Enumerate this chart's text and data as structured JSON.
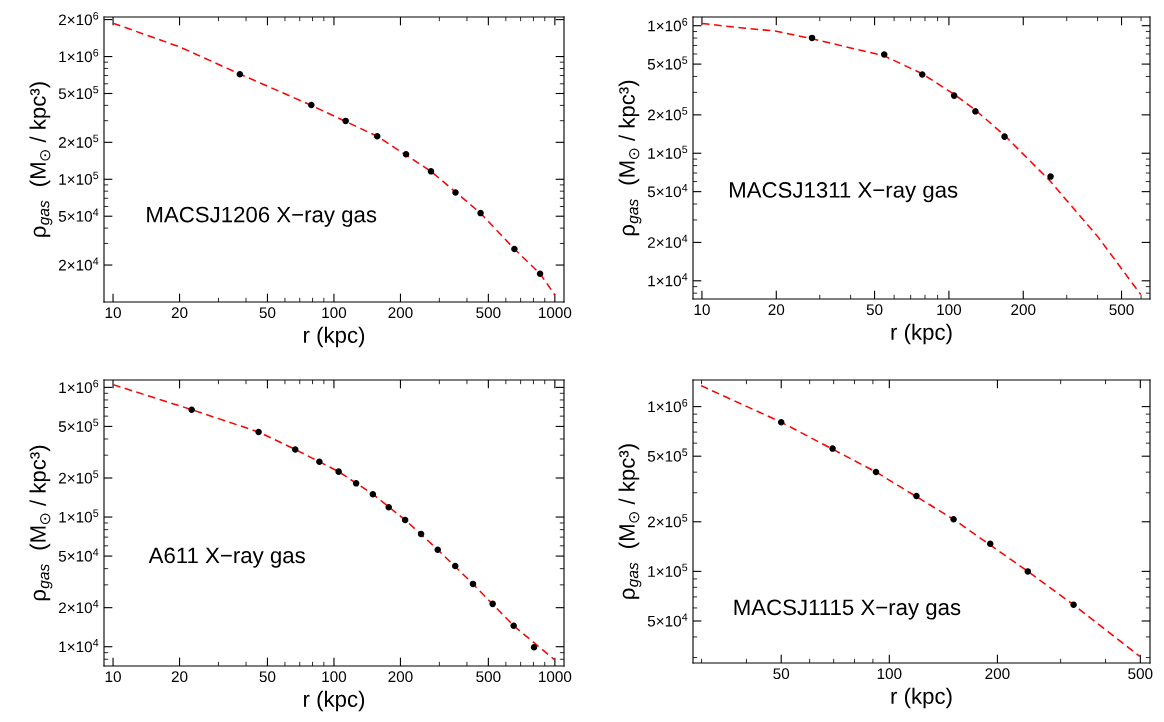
{
  "chart_data": [
    {
      "type": "scatter",
      "xlabel": "r (kpc)",
      "ylabel": "ρ$_{gas}$  (M$_{⊙}$ / kpc³)",
      "log": "xy",
      "annotations": [
        "MACSJ1206 X−ray gas"
      ],
      "xlim": [
        9.1,
        1100
      ],
      "xticks": [
        10,
        20,
        50,
        100,
        200,
        500,
        1000
      ],
      "ylim": [
        10000,
        2100000
      ],
      "yticks": [
        {
          "value": 20000,
          "label": "2×10$^{4}$"
        },
        {
          "value": 50000,
          "label": "5×10$^{4}$"
        },
        {
          "value": 100000,
          "label": "1×10$^{5}$"
        },
        {
          "value": 200000,
          "label": "2×10$^{5}$"
        },
        {
          "value": 500000,
          "label": "5×10$^{5}$"
        },
        {
          "value": 1000000,
          "label": "1×10$^{6}$"
        },
        {
          "value": 2000000,
          "label": "2×10$^{6}$"
        }
      ],
      "series": [
        {
          "type": "line",
          "color": "#ff0000",
          "line_style": "dashed",
          "marker": "none",
          "x": [
            10,
            20,
            37.5,
            79,
            157,
            275,
            461,
            656,
            857,
            1000
          ],
          "values": [
            1870000,
            1200000,
            720000,
            400000,
            224000,
            116000,
            53000,
            27000,
            17000,
            11400
          ]
        },
        {
          "color": "#000000",
          "marker": "circle",
          "x": [
            37.5,
            79,
            113,
            157,
            212,
            275,
            355,
            461,
            656,
            857
          ],
          "values": [
            717000,
            403000,
            299000,
            224000,
            160000,
            116000,
            78000,
            53000,
            27000,
            17000
          ]
        }
      ]
    },
    {
      "type": "scatter",
      "xlabel": "r (kpc)",
      "ylabel": "ρ$_{gas}$  (M$_{⊙}$ / kpc³)",
      "log": "xy",
      "annotations": [
        "MACSJ1311 X−ray gas"
      ],
      "xlim": [
        9.2,
        652
      ],
      "xticks": [
        10,
        20,
        50,
        100,
        200,
        500
      ],
      "ylim": [
        7200,
        1170000
      ],
      "yticks": [
        {
          "value": 10000,
          "label": "1×10$^{4}$"
        },
        {
          "value": 20000,
          "label": "2×10$^{4}$"
        },
        {
          "value": 50000,
          "label": "5×10$^{4}$"
        },
        {
          "value": 100000,
          "label": "1×10$^{5}$"
        },
        {
          "value": 200000,
          "label": "2×10$^{5}$"
        },
        {
          "value": 500000,
          "label": "5×10$^{5}$"
        },
        {
          "value": 1000000,
          "label": "1×10$^{6}$"
        }
      ],
      "series": [
        {
          "type": "line",
          "color": "#ff0000",
          "line_style": "dashed",
          "marker": "none",
          "x": [
            10,
            15,
            20,
            27.9,
            54.7,
            78,
            105,
            128,
            168,
            258,
            402,
            598
          ],
          "values": [
            1040000,
            955000,
            906000,
            790000,
            580000,
            420000,
            290000,
            218000,
            138000,
            60000,
            22000,
            7800
          ]
        },
        {
          "color": "#000000",
          "marker": "circle",
          "x": [
            27.9,
            54.7,
            78,
            105,
            128,
            168,
            258
          ],
          "values": [
            802000,
            594000,
            414000,
            283000,
            213000,
            135000,
            65600
          ]
        }
      ]
    },
    {
      "type": "scatter",
      "xlabel": "r (kpc)",
      "ylabel": "ρ$_{gas}$  (M$_{⊙}$ / kpc³)",
      "log": "xy",
      "annotations": [
        "A611 X−ray gas"
      ],
      "xlim": [
        9.1,
        1100
      ],
      "xticks": [
        10,
        20,
        50,
        100,
        200,
        500,
        1000
      ],
      "ylim": [
        7100,
        1140000
      ],
      "yticks": [
        {
          "value": 10000,
          "label": "1×10$^{4}$"
        },
        {
          "value": 20000,
          "label": "2×10$^{4}$"
        },
        {
          "value": 50000,
          "label": "5×10$^{4}$"
        },
        {
          "value": 100000,
          "label": "1×10$^{5}$"
        },
        {
          "value": 200000,
          "label": "2×10$^{5}$"
        },
        {
          "value": 500000,
          "label": "5×10$^{5}$"
        },
        {
          "value": 1000000,
          "label": "1×10$^{6}$"
        }
      ],
      "series": [
        {
          "type": "line",
          "color": "#ff0000",
          "line_style": "dashed",
          "marker": "none",
          "x": [
            10,
            22.7,
            45.6,
            66.8,
            105,
            150,
            210,
            295,
            426,
            651,
            1000
          ],
          "values": [
            1050000,
            673000,
            453000,
            332000,
            224000,
            150000,
            95000,
            56000,
            30500,
            14500,
            7900
          ]
        },
        {
          "color": "#000000",
          "marker": "circle",
          "x": [
            22.7,
            45.6,
            66.8,
            85.9,
            105,
            126,
            150,
            177,
            210,
            248,
            295,
            354,
            426,
            523,
            651,
            805
          ],
          "values": [
            673000,
            453000,
            332000,
            267000,
            224000,
            182000,
            150000,
            119000,
            95000,
            74000,
            56000,
            41900,
            30500,
            21400,
            14500,
            9900
          ]
        }
      ]
    },
    {
      "type": "scatter",
      "xlabel": "r (kpc)",
      "ylabel": "ρ$_{gas}$  (M$_{⊙}$ / kpc³)",
      "log": "xy",
      "annotations": [
        "MACSJ1115 X−ray gas"
      ],
      "xlim": [
        28.4,
        532
      ],
      "xticks": [
        50,
        100,
        200,
        500
      ],
      "ylim": [
        27800,
        1450000
      ],
      "yticks": [
        {
          "value": 50000,
          "label": "5×10$^{4}$"
        },
        {
          "value": 100000,
          "label": "1×10$^{5}$"
        },
        {
          "value": 200000,
          "label": "2×10$^{5}$"
        },
        {
          "value": 500000,
          "label": "5×10$^{5}$"
        },
        {
          "value": 1000000,
          "label": "1×10$^{6}$"
        }
      ],
      "series": [
        {
          "type": "line",
          "color": "#ff0000",
          "line_style": "dashed",
          "marker": "none",
          "x": [
            29.9,
            50,
            91.8,
            151,
            243,
            326,
            498
          ],
          "values": [
            1340000,
            804000,
            401000,
            207000,
            100000,
            62700,
            30500
          ]
        },
        {
          "color": "#000000",
          "marker": "circle",
          "x": [
            50,
            69.5,
            91.8,
            119,
            151,
            191,
            243,
            326
          ],
          "values": [
            804000,
            556000,
            401000,
            287000,
            207000,
            147000,
            100000,
            62700
          ]
        }
      ]
    }
  ]
}
